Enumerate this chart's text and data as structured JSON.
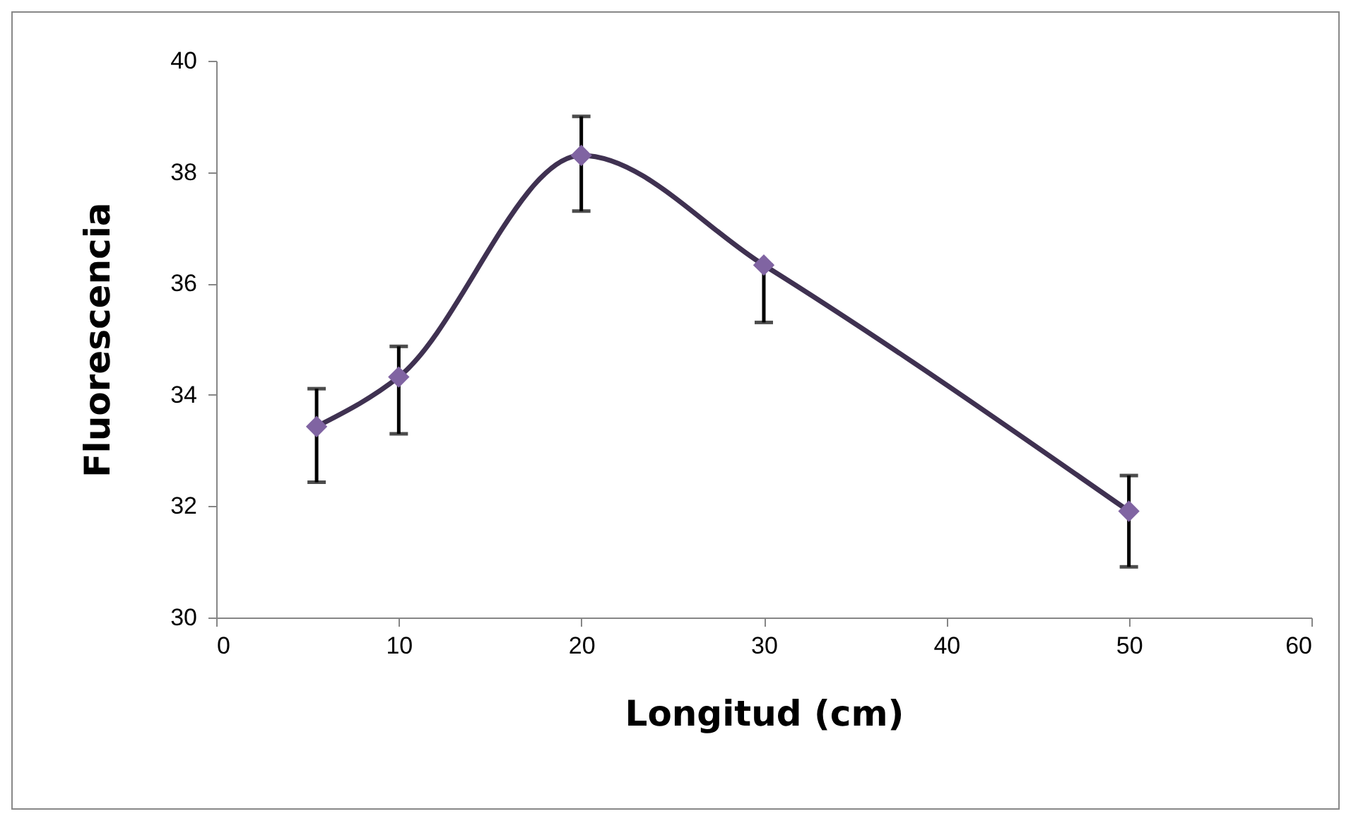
{
  "chart_data": {
    "type": "line",
    "xlabel": "Longitud (cm)",
    "ylabel": "Fluorescencia",
    "x": [
      5.5,
      10,
      20,
      30,
      50
    ],
    "series": [
      {
        "color": "#3f3151",
        "values": [
          33.43,
          34.32,
          38.3,
          36.33,
          31.91
        ],
        "errors": [
          [
            32.43,
            34.11
          ],
          [
            33.3,
            34.87
          ],
          [
            37.3,
            39.0
          ],
          [
            35.3,
            36.33
          ],
          [
            30.91,
            32.55
          ]
        ]
      }
    ],
    "marker": "diamond",
    "grid": false,
    "xlim": [
      0,
      60
    ],
    "xticks": [
      0,
      10,
      20,
      30,
      40,
      50,
      60
    ],
    "ylim": [
      30,
      40
    ],
    "yticks": [
      30,
      32,
      34,
      36,
      38,
      40
    ]
  }
}
